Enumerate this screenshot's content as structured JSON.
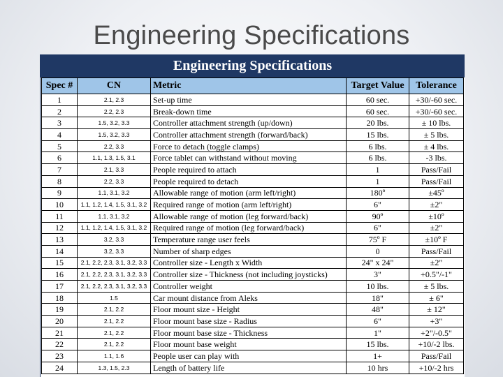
{
  "slide": {
    "title": "Engineering Specifications"
  },
  "table": {
    "banner": "Engineering Specifications",
    "headers": {
      "spec": "Spec #",
      "cn": "CN",
      "metric": "Metric",
      "target": "Target Value",
      "tolerance": "Tolerance"
    },
    "rows": [
      {
        "spec": "1",
        "cn": "2.1, 2.3",
        "metric": "Set-up time",
        "target": "60 sec.",
        "tolerance": "+30/-60 sec."
      },
      {
        "spec": "2",
        "cn": "2.2, 2.3",
        "metric": "Break-down time",
        "target": "60 sec.",
        "tolerance": "+30/-60 sec."
      },
      {
        "spec": "3",
        "cn": "1.5, 3.2, 3.3",
        "metric": "Controller attachment strength (up/down)",
        "target": "20 lbs.",
        "tolerance": "± 10 lbs."
      },
      {
        "spec": "4",
        "cn": "1.5, 3.2, 3.3",
        "metric": "Controller attachment strength (forward/back)",
        "target": "15 lbs.",
        "tolerance": "± 5 lbs."
      },
      {
        "spec": "5",
        "cn": "2.2, 3.3",
        "metric": "Force to detach (toggle clamps)",
        "target": "6 lbs.",
        "tolerance": "± 4 lbs."
      },
      {
        "spec": "6",
        "cn": "1.1, 1.3, 1.5, 3.1",
        "metric": "Force tablet can withstand without moving",
        "target": "6 lbs.",
        "tolerance": "-3 lbs."
      },
      {
        "spec": "7",
        "cn": "2.1, 3.3",
        "metric": "People required to attach",
        "target": "1",
        "tolerance": "Pass/Fail"
      },
      {
        "spec": "8",
        "cn": "2.2, 3.3",
        "metric": "People required to detach",
        "target": "1",
        "tolerance": "Pass/Fail"
      },
      {
        "spec": "9",
        "cn": "1.1, 3.1, 3.2",
        "metric": "Allowable range of motion (arm left/right)",
        "target": "180º",
        "tolerance": "±45º"
      },
      {
        "spec": "10",
        "cn": "1.1, 1.2, 1.4, 1.5, 3.1, 3.2",
        "metric": "Required range of motion (arm left/right)",
        "target": "6\"",
        "tolerance": "±2\""
      },
      {
        "spec": "11",
        "cn": "1.1, 3.1, 3.2",
        "metric": "Allowable range of motion (leg forward/back)",
        "target": "90º",
        "tolerance": "±10º"
      },
      {
        "spec": "12",
        "cn": "1.1, 1.2, 1.4, 1.5, 3.1, 3.2",
        "metric": "Required range of motion (leg forward/back)",
        "target": "6\"",
        "tolerance": "±2\""
      },
      {
        "spec": "13",
        "cn": "3.2, 3.3",
        "metric": "Temperature range user feels",
        "target": "75º F",
        "tolerance": "±10º F"
      },
      {
        "spec": "14",
        "cn": "3.2, 3.3",
        "metric": "Number of sharp edges",
        "target": "0",
        "tolerance": "Pass/Fail"
      },
      {
        "spec": "15",
        "cn": "2.1, 2.2, 2.3, 3.1, 3.2, 3.3",
        "metric": "Controller size - Length x Width",
        "target": "24\" x 24\"",
        "tolerance": "±2\""
      },
      {
        "spec": "16",
        "cn": "2.1, 2.2, 2.3, 3.1, 3.2, 3.3",
        "metric": "Controller size - Thickness (not including joysticks)",
        "target": "3\"",
        "tolerance": "+0.5\"/-1\""
      },
      {
        "spec": "17",
        "cn": "2.1, 2.2, 2.3, 3.1, 3.2, 3.3",
        "metric": "Controller weight",
        "target": "10 lbs.",
        "tolerance": "± 5 lbs."
      },
      {
        "spec": "18",
        "cn": "1.5",
        "metric": "Car mount distance from Aleks",
        "target": "18\"",
        "tolerance": "± 6\""
      },
      {
        "spec": "19",
        "cn": "2.1, 2.2",
        "metric": "Floor mount size - Height",
        "target": "48\"",
        "tolerance": "± 12\""
      },
      {
        "spec": "20",
        "cn": "2.1, 2.2",
        "metric": "Floor mount base size - Radius",
        "target": "6\"",
        "tolerance": "+3\""
      },
      {
        "spec": "21",
        "cn": "2.1, 2.2",
        "metric": "Floor mount base size - Thickness",
        "target": "1\"",
        "tolerance": "+2\"/-0.5\""
      },
      {
        "spec": "22",
        "cn": "2.1, 2.2",
        "metric": "Floor mount base weight",
        "target": "15 lbs.",
        "tolerance": "+10/-2 lbs."
      },
      {
        "spec": "23",
        "cn": "1.1, 1.6",
        "metric": "People user can play with",
        "target": "1+",
        "tolerance": "Pass/Fail"
      },
      {
        "spec": "24",
        "cn": "1.3, 1.5, 2.3",
        "metric": "Length of battery life",
        "target": "10 hrs",
        "tolerance": "+10/-2 hrs"
      }
    ]
  }
}
